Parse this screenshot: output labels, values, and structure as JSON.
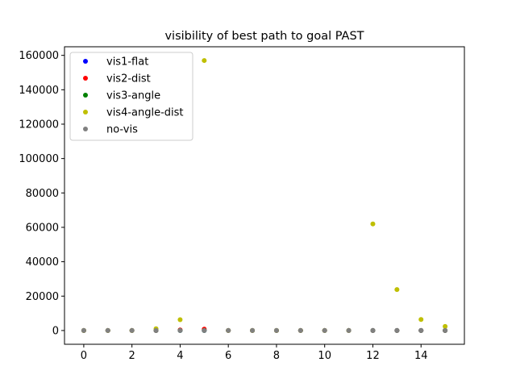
{
  "chart_data": {
    "type": "scatter",
    "title": "visibility of best path to goal PAST",
    "xlabel": "",
    "ylabel": "",
    "xlim": [
      -0.8,
      15.8
    ],
    "ylim": [
      -8000,
      165000
    ],
    "xticks": [
      0,
      2,
      4,
      6,
      8,
      10,
      12,
      14
    ],
    "yticks": [
      0,
      20000,
      40000,
      60000,
      80000,
      100000,
      120000,
      140000,
      160000
    ],
    "xtick_labels": [
      "0",
      "2",
      "4",
      "6",
      "8",
      "10",
      "12",
      "14"
    ],
    "ytick_labels": [
      "0",
      "20000",
      "40000",
      "60000",
      "80000",
      "100000",
      "120000",
      "140000",
      "160000"
    ],
    "grid": false,
    "legend_position": "top-left",
    "series": [
      {
        "name": "vis1-flat",
        "color": "#0000ff",
        "points": [
          [
            0,
            0
          ],
          [
            1,
            0
          ],
          [
            2,
            0
          ],
          [
            3,
            0
          ],
          [
            4,
            0
          ],
          [
            5,
            0
          ],
          [
            6,
            0
          ],
          [
            7,
            0
          ],
          [
            8,
            0
          ],
          [
            9,
            0
          ],
          [
            10,
            0
          ],
          [
            11,
            0
          ],
          [
            12,
            0
          ],
          [
            13,
            0
          ],
          [
            14,
            0
          ],
          [
            15,
            0
          ]
        ]
      },
      {
        "name": "vis2-dist",
        "color": "#ff0000",
        "points": [
          [
            0,
            0
          ],
          [
            1,
            0
          ],
          [
            2,
            0
          ],
          [
            3,
            0
          ],
          [
            4,
            300
          ],
          [
            5,
            800
          ],
          [
            6,
            0
          ],
          [
            7,
            0
          ],
          [
            8,
            0
          ],
          [
            9,
            0
          ],
          [
            10,
            0
          ],
          [
            11,
            0
          ],
          [
            12,
            0
          ],
          [
            13,
            0
          ],
          [
            14,
            0
          ],
          [
            15,
            0
          ]
        ]
      },
      {
        "name": "vis3-angle",
        "color": "#008000",
        "points": [
          [
            0,
            0
          ],
          [
            1,
            0
          ],
          [
            2,
            0
          ],
          [
            3,
            0
          ],
          [
            4,
            0
          ],
          [
            5,
            0
          ],
          [
            6,
            0
          ],
          [
            7,
            0
          ],
          [
            8,
            0
          ],
          [
            9,
            0
          ],
          [
            10,
            0
          ],
          [
            11,
            0
          ],
          [
            12,
            0
          ],
          [
            13,
            0
          ],
          [
            14,
            0
          ],
          [
            15,
            0
          ]
        ]
      },
      {
        "name": "vis4-angle-dist",
        "color": "#bfbf00",
        "points": [
          [
            0,
            0
          ],
          [
            1,
            0
          ],
          [
            2,
            0
          ],
          [
            3,
            1000
          ],
          [
            4,
            6300
          ],
          [
            5,
            157000
          ],
          [
            6,
            0
          ],
          [
            7,
            0
          ],
          [
            8,
            0
          ],
          [
            9,
            0
          ],
          [
            10,
            0
          ],
          [
            11,
            0
          ],
          [
            12,
            62000
          ],
          [
            13,
            23800
          ],
          [
            14,
            6400
          ],
          [
            15,
            2400
          ]
        ]
      },
      {
        "name": "no-vis",
        "color": "#808080",
        "points": [
          [
            0,
            0
          ],
          [
            1,
            0
          ],
          [
            2,
            0
          ],
          [
            3,
            0
          ],
          [
            4,
            0
          ],
          [
            5,
            0
          ],
          [
            6,
            0
          ],
          [
            7,
            0
          ],
          [
            8,
            0
          ],
          [
            9,
            0
          ],
          [
            10,
            0
          ],
          [
            11,
            0
          ],
          [
            12,
            0
          ],
          [
            13,
            0
          ],
          [
            14,
            0
          ],
          [
            15,
            0
          ]
        ]
      }
    ]
  }
}
